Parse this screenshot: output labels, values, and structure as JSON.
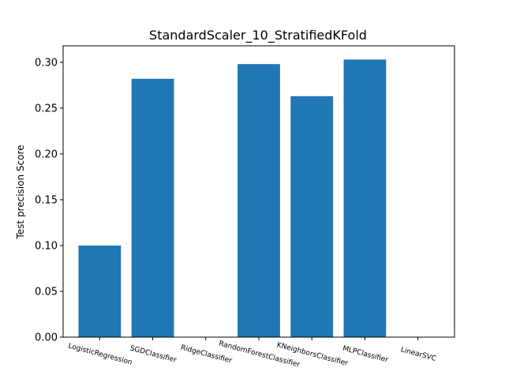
{
  "chart_data": {
    "type": "bar",
    "title": "StandardScaler_10_StratifiedKFold",
    "xlabel": "",
    "ylabel": "Test precision Score",
    "categories": [
      "LogisticRegression",
      "SGDClassifier",
      "RidgeClassifier",
      "RandomForestClassifier",
      "KNeighborsClassifier",
      "MLPClassifier",
      "LinearSVC"
    ],
    "values": [
      0.1,
      0.282,
      0.0,
      0.298,
      0.263,
      0.303,
      0.0
    ],
    "yticks": [
      "0.00",
      "0.05",
      "0.10",
      "0.15",
      "0.20",
      "0.25",
      "0.30"
    ],
    "ylim": [
      0,
      0.318
    ],
    "bar_color": "#1f77b4",
    "grid": false,
    "legend": "none"
  }
}
